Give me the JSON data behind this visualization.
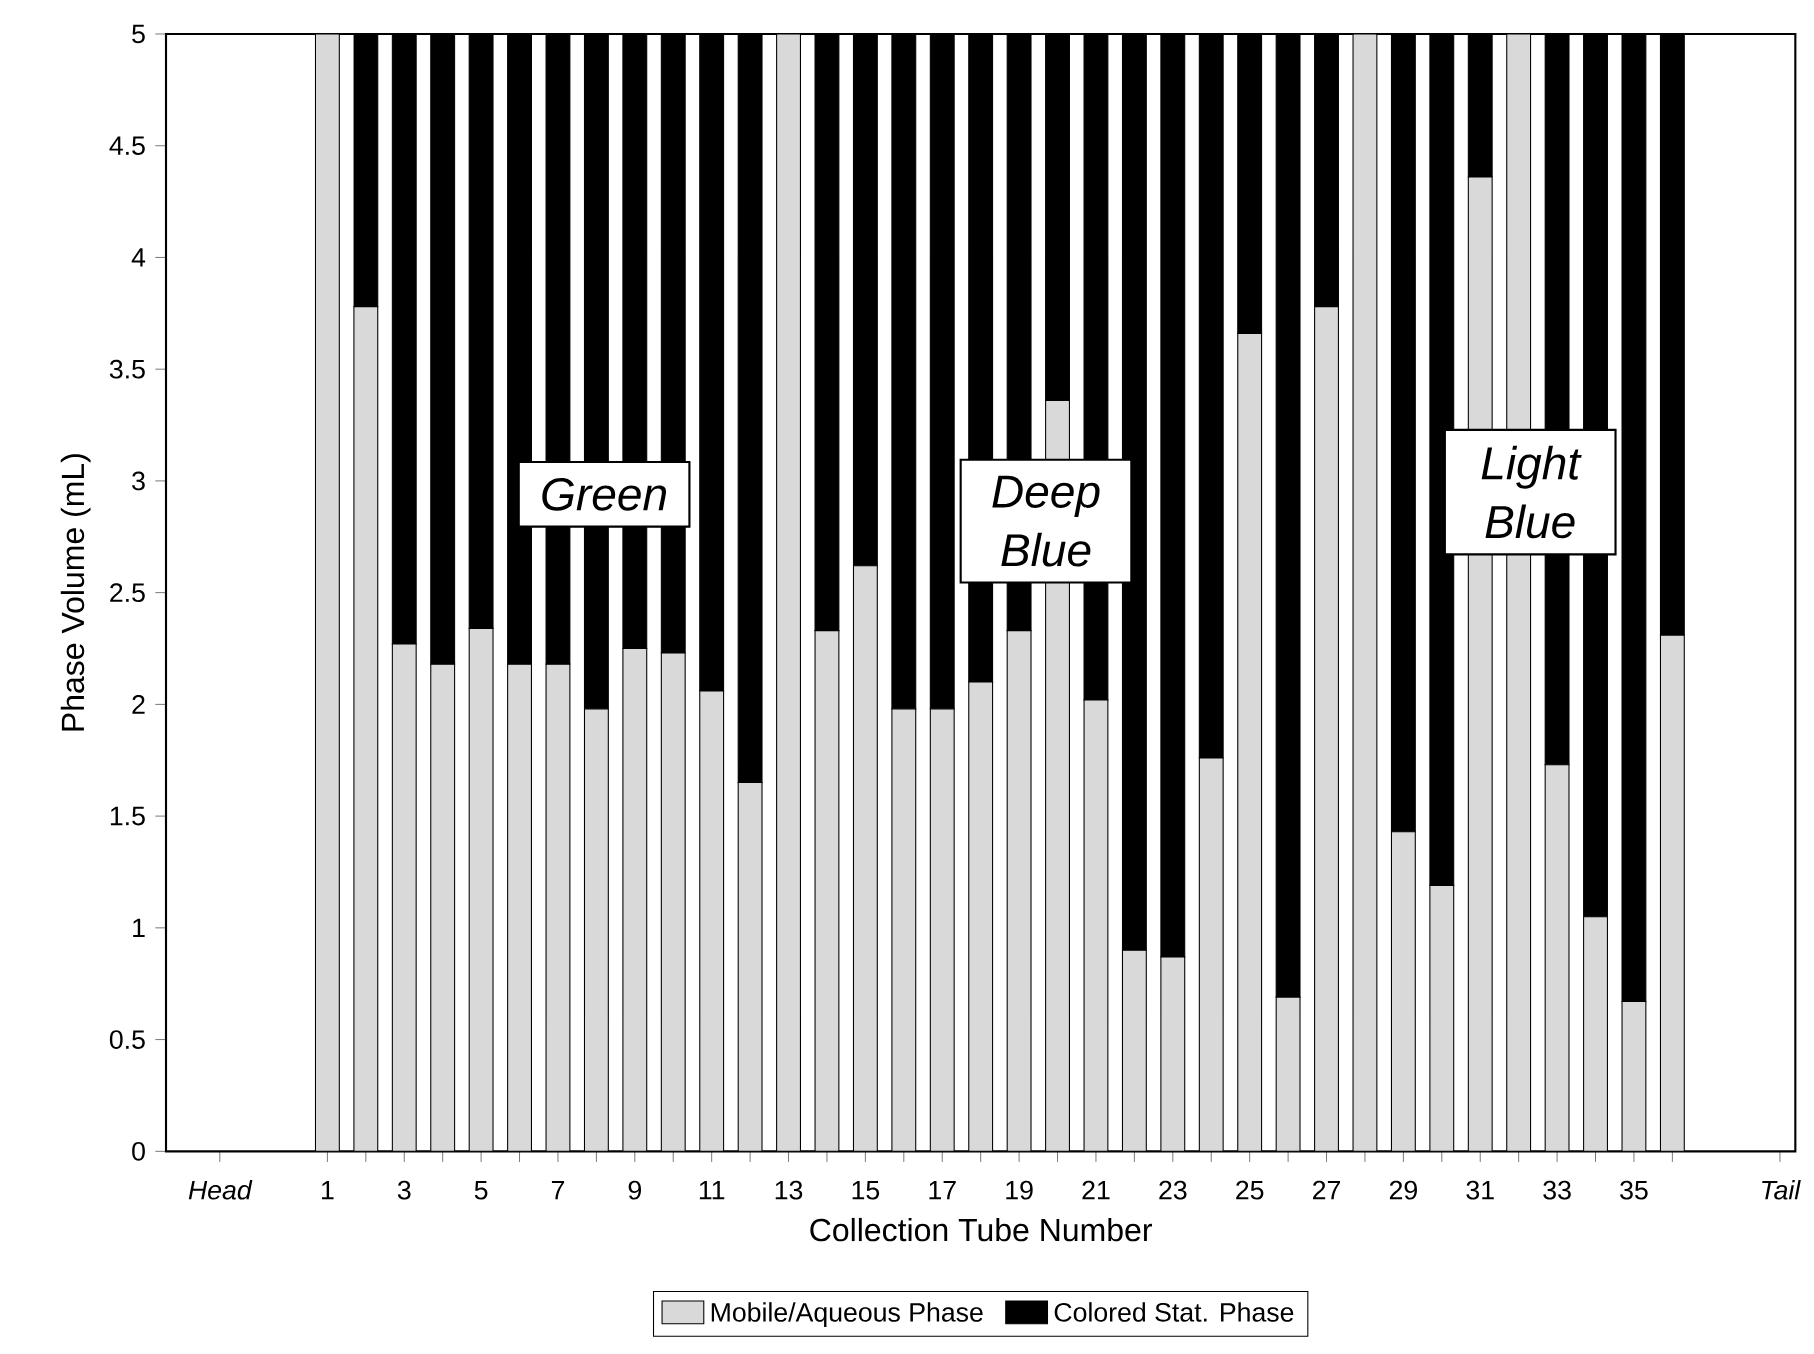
{
  "chart_data": {
    "type": "bar",
    "stacked": true,
    "xlabel": "Collection Tube Number",
    "ylabel": "Phase Volume (mL)",
    "categories": [
      "Head",
      "1",
      null,
      "3",
      null,
      "5",
      null,
      "7",
      null,
      "9",
      null,
      "11",
      null,
      "13",
      null,
      "15",
      null,
      "17",
      null,
      "19",
      null,
      "21",
      null,
      "23",
      null,
      "25",
      null,
      "27",
      null,
      "29",
      null,
      "31",
      null,
      "33",
      null,
      "35",
      null,
      "Tail"
    ],
    "series": [
      {
        "name": "Mobile/Aqueous Phase",
        "color": "#d9d9d9",
        "values": [
          null,
          5,
          3.78,
          2.27,
          2.18,
          2.34,
          2.18,
          2.18,
          1.98,
          2.25,
          2.23,
          2.06,
          1.65,
          5,
          2.33,
          2.62,
          1.98,
          1.98,
          2.1,
          2.33,
          3.36,
          2.02,
          0.9,
          0.87,
          1.76,
          3.66,
          0.69,
          3.78,
          5,
          1.43,
          1.19,
          4.36,
          5,
          1.73,
          1.05,
          0.67,
          2.31,
          null
        ]
      },
      {
        "name": "Colored Stat. Phase",
        "color": "#000000",
        "values": [
          null,
          0,
          1.22,
          2.73,
          2.82,
          2.66,
          2.82,
          2.82,
          3.02,
          2.75,
          2.77,
          2.94,
          3.35,
          0,
          2.67,
          2.38,
          3.02,
          3.02,
          2.9,
          2.67,
          1.64,
          2.98,
          4.1,
          4.13,
          3.24,
          1.34,
          4.31,
          1.22,
          0,
          3.57,
          3.81,
          0.64,
          0,
          3.27,
          3.95,
          4.33,
          2.69,
          null
        ]
      }
    ],
    "ylim": [
      0,
      5
    ],
    "yticks": [
      0,
      0.5,
      1,
      1.5,
      2,
      2.5,
      3,
      3.5,
      4,
      4.5,
      5
    ],
    "legend": "bottom",
    "annotations": [
      "Green",
      "Deep Blue",
      "Light Blue"
    ]
  }
}
